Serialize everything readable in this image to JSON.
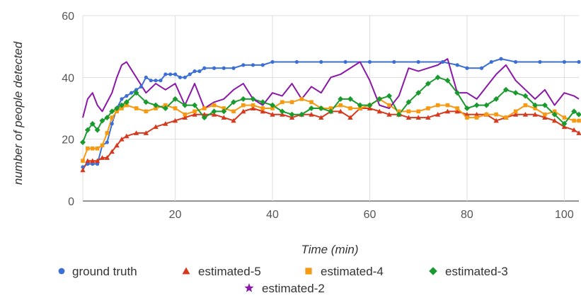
{
  "chart_data": {
    "type": "line",
    "xlabel": "Time (min)",
    "ylabel": "number of people detected",
    "xlim": [
      1,
      103
    ],
    "ylim": [
      0,
      60
    ],
    "xticks": [
      20,
      40,
      60,
      80,
      100
    ],
    "yticks": [
      0,
      20,
      40,
      60
    ],
    "grid": true,
    "legend": "bottom",
    "series": [
      {
        "name": "ground truth",
        "color": "#3b6fd4",
        "marker": "circle",
        "x": [
          1,
          2,
          3,
          4,
          5,
          6,
          7,
          8,
          9,
          10,
          11,
          12,
          13,
          14,
          15,
          16,
          17,
          18,
          19,
          20,
          21,
          22,
          23,
          24,
          25,
          26,
          28,
          30,
          32,
          34,
          36,
          38,
          40,
          45,
          50,
          55,
          60,
          65,
          70,
          75,
          78,
          80,
          83,
          85,
          87,
          90,
          95,
          100,
          103
        ],
        "y": [
          11,
          12,
          12,
          12,
          18,
          19,
          25,
          30,
          33,
          34,
          35,
          36,
          37,
          40,
          39,
          39,
          39,
          41,
          41,
          41,
          40,
          40,
          41,
          42,
          42,
          43,
          43,
          43,
          43,
          44,
          44,
          44,
          45,
          45,
          45,
          45,
          45,
          45,
          45,
          45,
          44,
          43,
          43,
          45,
          46,
          45,
          45,
          45,
          45
        ]
      },
      {
        "name": "estimated-5",
        "color": "#d63a1e",
        "marker": "triangle",
        "x": [
          1,
          2,
          3,
          4,
          5,
          6,
          7,
          8,
          9,
          10,
          12,
          14,
          16,
          18,
          20,
          22,
          24,
          26,
          28,
          30,
          32,
          34,
          36,
          38,
          40,
          42,
          44,
          46,
          48,
          50,
          52,
          54,
          56,
          58,
          60,
          62,
          64,
          66,
          68,
          70,
          72,
          74,
          76,
          78,
          80,
          82,
          84,
          86,
          88,
          90,
          92,
          94,
          96,
          98,
          100,
          102,
          103
        ],
        "y": [
          10,
          13,
          13,
          13,
          14,
          14,
          16,
          18,
          20,
          21,
          22,
          22,
          24,
          25,
          26,
          27,
          28,
          28,
          28,
          27,
          26,
          29,
          30,
          29,
          28,
          28,
          27,
          28,
          28,
          27,
          29,
          29,
          27,
          30,
          30,
          29,
          28,
          28,
          27,
          27,
          27,
          28,
          29,
          29,
          28,
          28,
          28,
          26,
          27,
          28,
          28,
          28,
          27,
          26,
          24,
          23,
          22
        ]
      },
      {
        "name": "estimated-4",
        "color": "#f59a12",
        "marker": "square",
        "x": [
          1,
          2,
          3,
          4,
          5,
          6,
          7,
          8,
          9,
          10,
          12,
          14,
          16,
          18,
          20,
          22,
          24,
          26,
          28,
          30,
          32,
          34,
          36,
          38,
          40,
          42,
          44,
          46,
          48,
          50,
          52,
          54,
          56,
          58,
          60,
          62,
          64,
          66,
          68,
          70,
          72,
          74,
          76,
          78,
          80,
          82,
          84,
          86,
          88,
          90,
          92,
          94,
          96,
          98,
          100,
          102,
          103
        ],
        "y": [
          13,
          17,
          17,
          17,
          18,
          22,
          27,
          29,
          30,
          31,
          30,
          29,
          30,
          31,
          30,
          28,
          29,
          30,
          31,
          30,
          29,
          31,
          31,
          30,
          30,
          32,
          32,
          33,
          32,
          30,
          30,
          31,
          30,
          30,
          31,
          33,
          31,
          29,
          29,
          29,
          30,
          31,
          31,
          30,
          27,
          27,
          28,
          28,
          27,
          29,
          31,
          30,
          28,
          29,
          27,
          26,
          26
        ]
      },
      {
        "name": "estimated-3",
        "color": "#1a9a2e",
        "marker": "diamond",
        "x": [
          1,
          2,
          3,
          4,
          5,
          6,
          7,
          8,
          9,
          10,
          12,
          14,
          16,
          18,
          20,
          22,
          24,
          26,
          28,
          30,
          32,
          34,
          36,
          38,
          40,
          42,
          44,
          46,
          48,
          50,
          52,
          54,
          56,
          58,
          60,
          62,
          64,
          66,
          68,
          70,
          72,
          74,
          76,
          78,
          80,
          82,
          84,
          86,
          88,
          90,
          92,
          94,
          96,
          98,
          100,
          102,
          103
        ],
        "y": [
          19,
          23,
          25,
          23,
          26,
          27,
          29,
          30,
          31,
          32,
          35,
          32,
          31,
          30,
          33,
          31,
          31,
          27,
          29,
          29,
          32,
          33,
          33,
          32,
          31,
          29,
          28,
          28,
          30,
          30,
          29,
          33,
          33,
          31,
          31,
          33,
          34,
          28,
          32,
          35,
          38,
          40,
          39,
          35,
          30,
          31,
          31,
          33,
          36,
          35,
          34,
          31,
          31,
          28,
          25,
          29,
          28
        ]
      },
      {
        "name": "estimated-2",
        "color": "#8a18a8",
        "marker": "star",
        "x": [
          1,
          2,
          3,
          4,
          5,
          6,
          7,
          8,
          9,
          10,
          12,
          14,
          16,
          18,
          20,
          22,
          24,
          26,
          28,
          30,
          32,
          34,
          36,
          38,
          40,
          42,
          44,
          46,
          48,
          50,
          52,
          54,
          56,
          58,
          60,
          62,
          64,
          66,
          68,
          70,
          72,
          74,
          76,
          78,
          80,
          82,
          84,
          86,
          88,
          90,
          92,
          94,
          96,
          98,
          100,
          102,
          103
        ],
        "y": [
          27,
          33,
          35,
          31,
          29,
          32,
          35,
          40,
          44,
          45,
          40,
          35,
          38,
          36,
          38,
          31,
          38,
          30,
          32,
          33,
          36,
          38,
          33,
          31,
          35,
          34,
          38,
          33,
          37,
          35,
          40,
          41,
          43,
          45,
          39,
          31,
          30,
          34,
          43,
          42,
          43,
          44,
          46,
          35,
          35,
          33,
          37,
          41,
          44,
          39,
          36,
          33,
          36,
          31,
          35,
          34,
          33
        ]
      }
    ]
  }
}
